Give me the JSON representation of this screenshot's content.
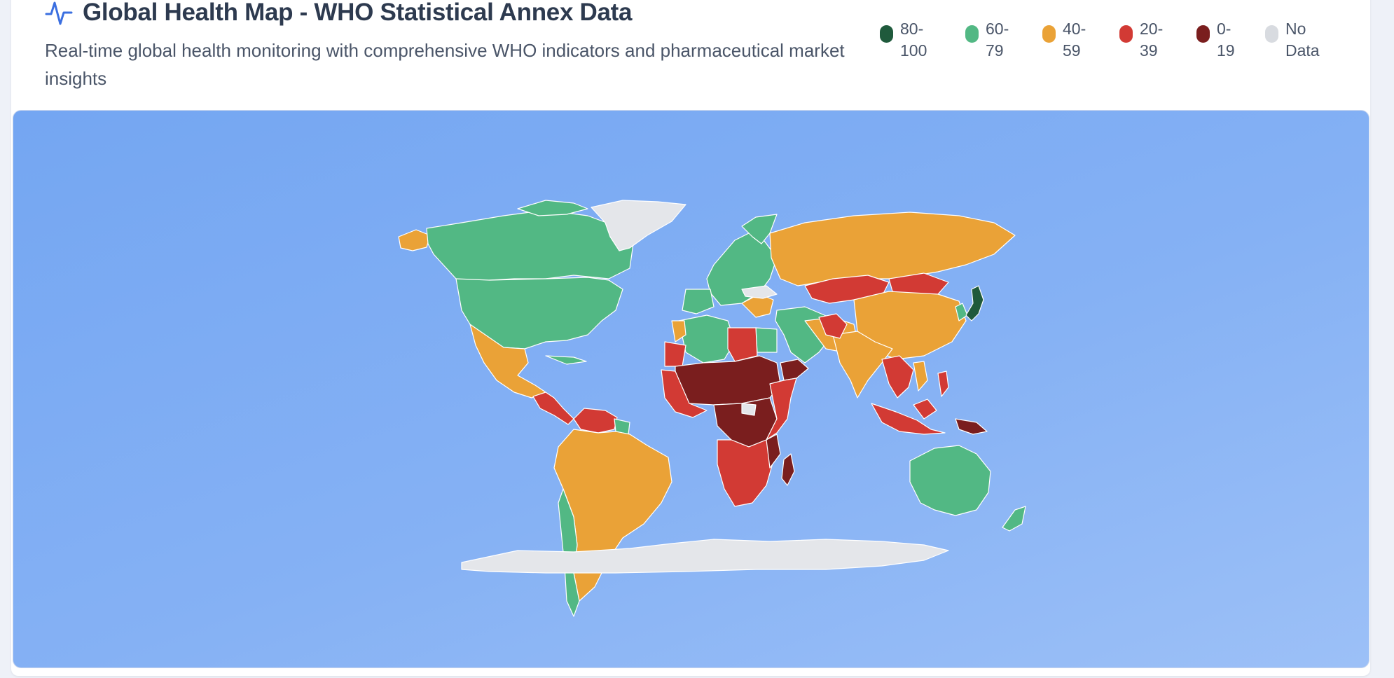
{
  "header": {
    "title": "Global Health Map - WHO Statistical Annex Data",
    "subtitle": "Real-time global health monitoring with comprehensive WHO indicators and pharmaceutical market insights",
    "icon": "activity-pulse-icon",
    "icon_color": "#3b6fe0"
  },
  "legend": [
    {
      "label": "80-\n100",
      "color": "#1f5a3c"
    },
    {
      "label": "60-\n79",
      "color": "#52b884"
    },
    {
      "label": "40-\n59",
      "color": "#eaa237"
    },
    {
      "label": "20-\n39",
      "color": "#d23a34"
    },
    {
      "label": "0-\n19",
      "color": "#7a1e1e"
    },
    {
      "label": "No\nData",
      "color": "#d8dbe0"
    }
  ],
  "map": {
    "ocean_color": "#7fadf3",
    "regions": [
      {
        "name": "Alaska",
        "score_band": "40-59"
      },
      {
        "name": "Canada",
        "score_band": "60-79"
      },
      {
        "name": "United States",
        "score_band": "60-79"
      },
      {
        "name": "Greenland",
        "score_band": "No Data"
      },
      {
        "name": "Mexico",
        "score_band": "40-59"
      },
      {
        "name": "Central America",
        "score_band": "20-39"
      },
      {
        "name": "Venezuela",
        "score_band": "20-39"
      },
      {
        "name": "South America",
        "score_band": "40-59"
      },
      {
        "name": "Chile",
        "score_band": "60-79"
      },
      {
        "name": "Western Europe",
        "score_band": "60-79"
      },
      {
        "name": "Balkans",
        "score_band": "40-59"
      },
      {
        "name": "Russia",
        "score_band": "40-59"
      },
      {
        "name": "Central Asia",
        "score_band": "20-39"
      },
      {
        "name": "Mongolia",
        "score_band": "20-39"
      },
      {
        "name": "China",
        "score_band": "40-59"
      },
      {
        "name": "India",
        "score_band": "40-59"
      },
      {
        "name": "Middle East",
        "score_band": "60-79"
      },
      {
        "name": "Japan",
        "score_band": "80-100"
      },
      {
        "name": "Southeast Asia",
        "score_band": "20-39"
      },
      {
        "name": "Indonesia",
        "score_band": "20-39"
      },
      {
        "name": "Papua New Guinea",
        "score_band": "0-19"
      },
      {
        "name": "Australia",
        "score_band": "60-79"
      },
      {
        "name": "New Zealand",
        "score_band": "60-79"
      },
      {
        "name": "North Africa",
        "score_band": "60-79"
      },
      {
        "name": "Libya",
        "score_band": "20-39"
      },
      {
        "name": "Sahel",
        "score_band": "0-19"
      },
      {
        "name": "Central Africa",
        "score_band": "0-19"
      },
      {
        "name": "East Africa",
        "score_band": "20-39"
      },
      {
        "name": "Southern Africa",
        "score_band": "20-39"
      },
      {
        "name": "Madagascar",
        "score_band": "0-19"
      },
      {
        "name": "Antarctica",
        "score_band": "No Data"
      }
    ]
  }
}
